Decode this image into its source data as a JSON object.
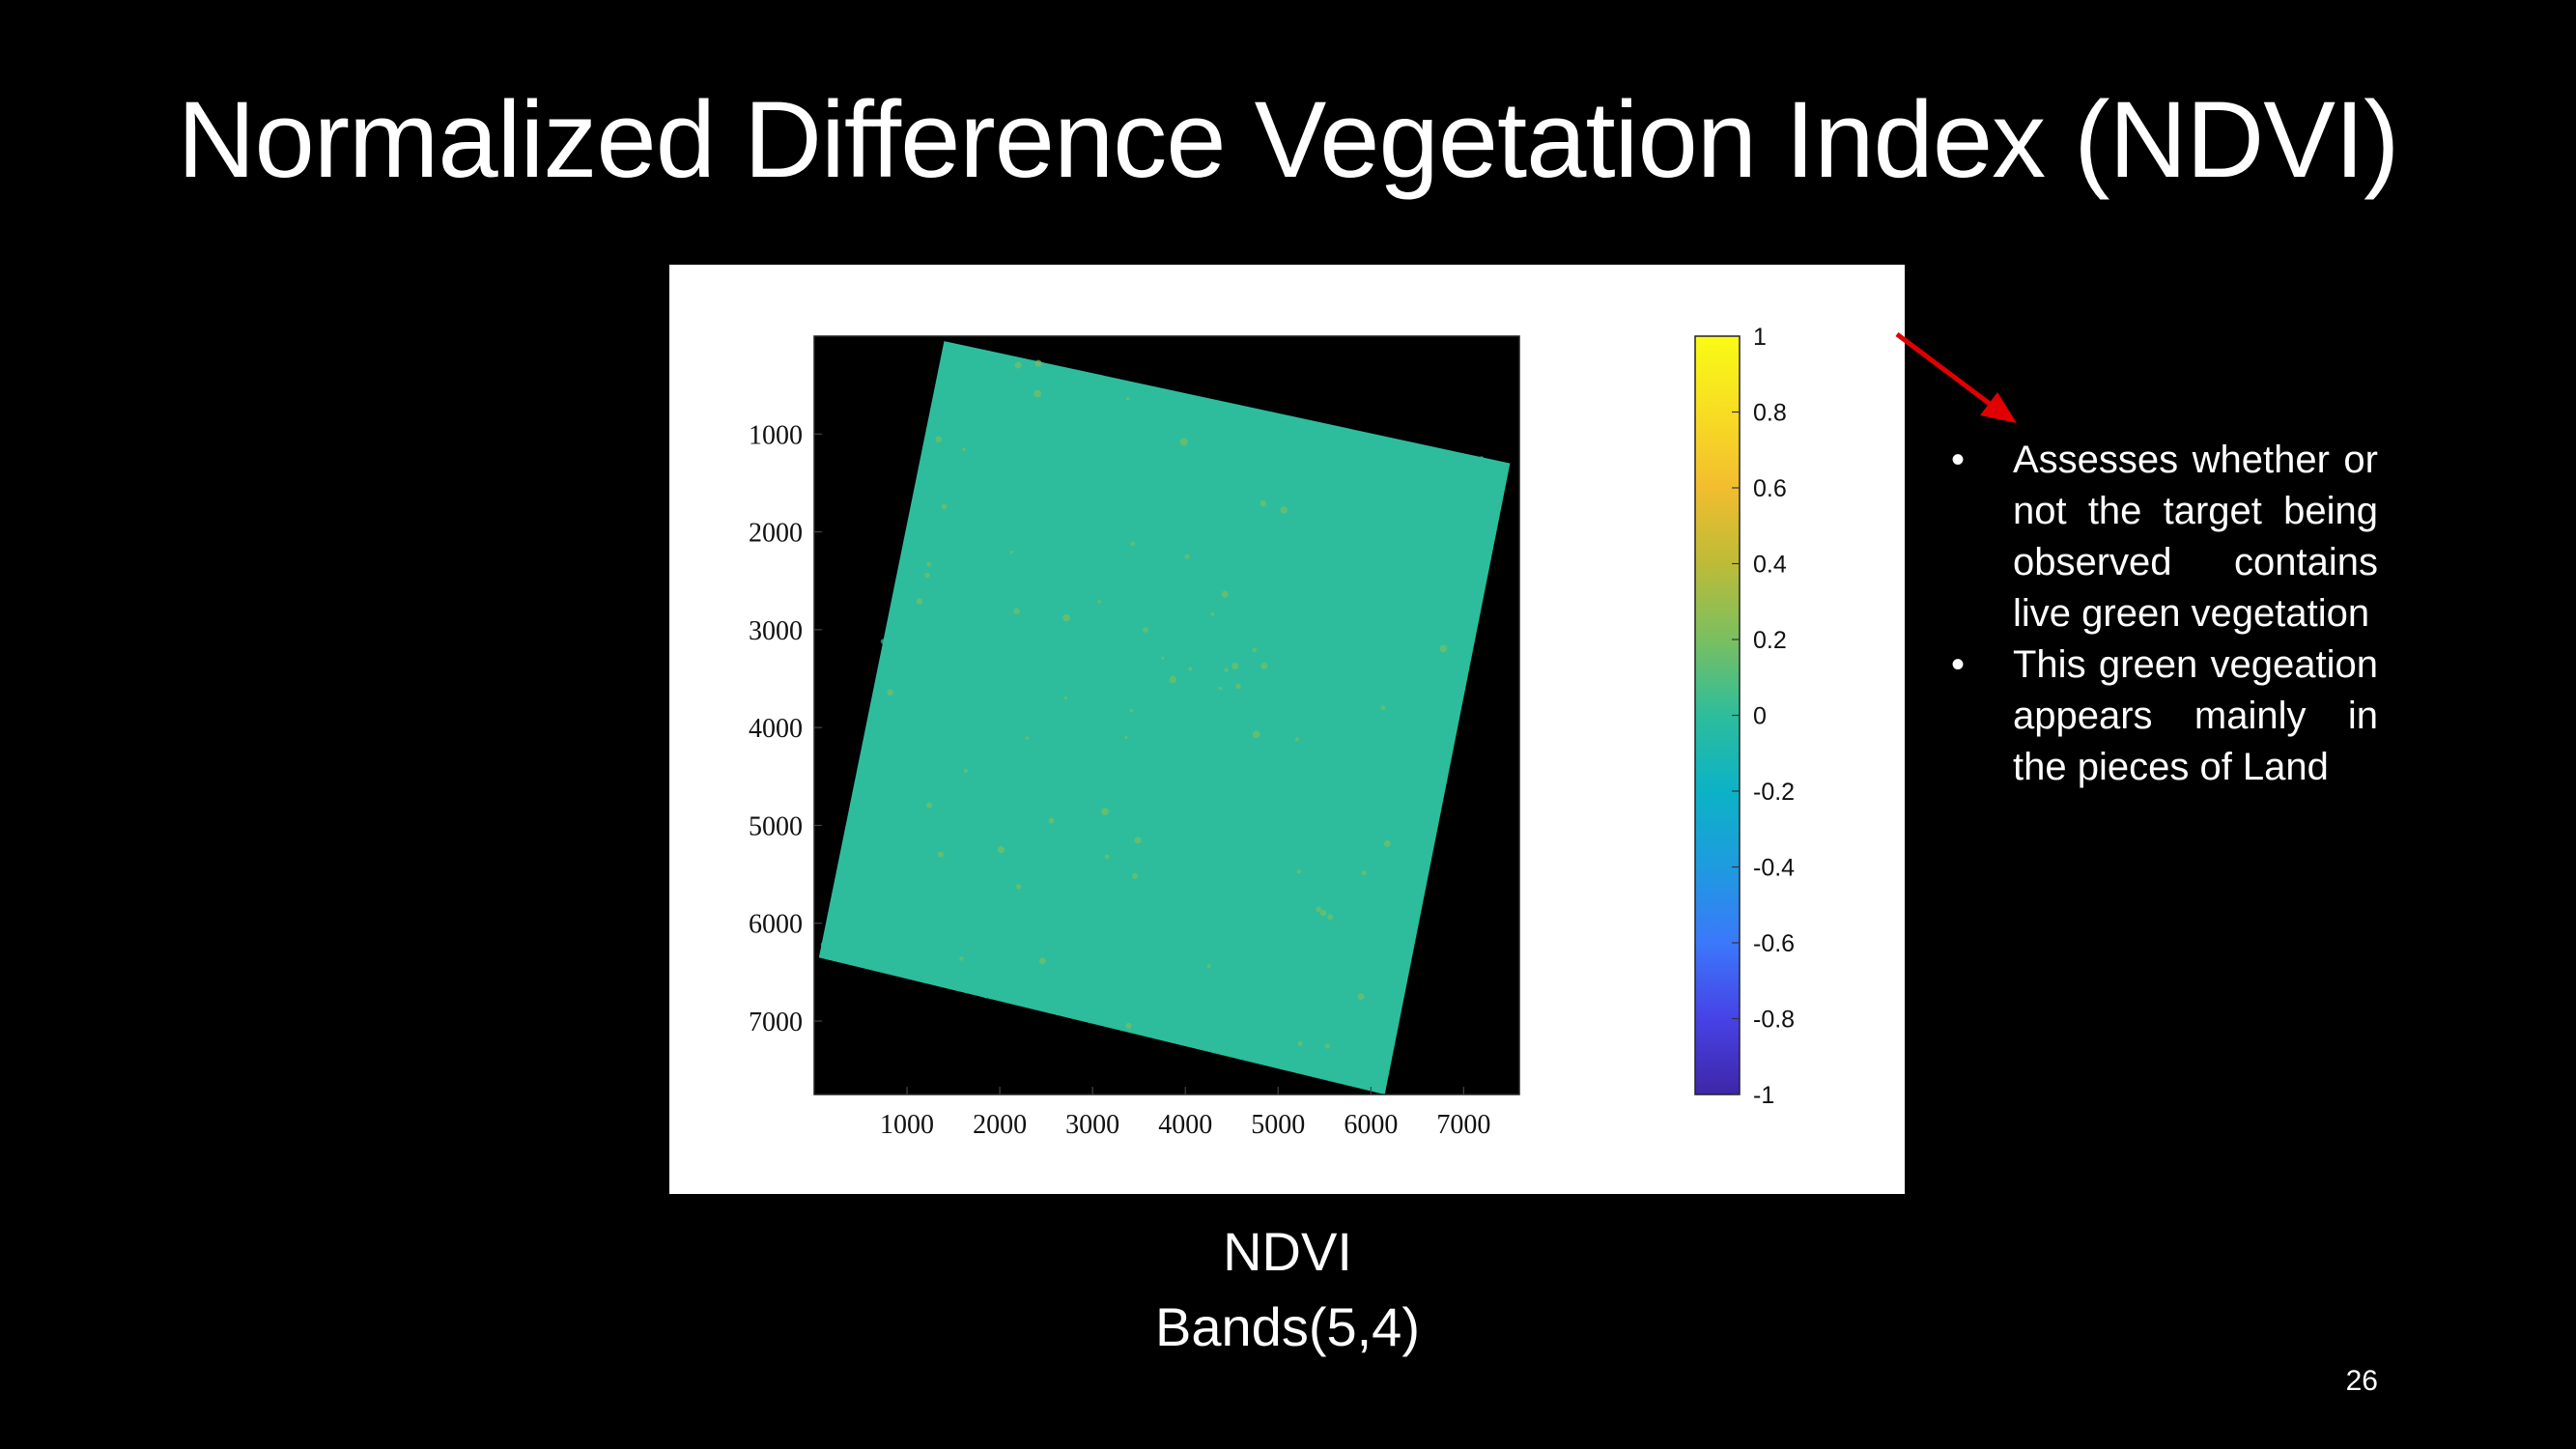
{
  "slide": {
    "title": "Normalized Difference Vegetation Index (NDVI)",
    "caption_line1": "NDVI",
    "caption_line2": "Bands(5,4)",
    "page_number": "26",
    "bullets": [
      {
        "symbol": "•",
        "text": "Assesses whether or not the target being observed contains live green vegetation"
      },
      {
        "symbol": "•",
        "text": "This green vegeation appears mainly in the pieces of Land"
      }
    ],
    "arrow_color": "#e00000"
  },
  "chart_data": {
    "type": "heatmap",
    "title": "",
    "xlabel": "",
    "ylabel": "",
    "xlim": [
      0,
      7600
    ],
    "ylim": [
      7750,
      0
    ],
    "x_ticks": [
      1000,
      2000,
      3000,
      4000,
      5000,
      6000,
      7000
    ],
    "y_ticks": [
      1000,
      2000,
      3000,
      4000,
      5000,
      6000,
      7000
    ],
    "image_footprint_corners": [
      [
        1400,
        50
      ],
      [
        7500,
        1300
      ],
      [
        6150,
        7750
      ],
      [
        50,
        6350
      ]
    ],
    "background_color": "#000000",
    "dominant_value": -0.1,
    "colorbar": {
      "range": [
        -1,
        1
      ],
      "ticks": [
        "1",
        "0.8",
        "0.6",
        "0.4",
        "0.2",
        "0",
        "-0.2",
        "-0.4",
        "-0.6",
        "-0.8",
        "-1"
      ],
      "colormap": [
        "#3e26a8",
        "#4742e6",
        "#3b78fb",
        "#1e9bdf",
        "#0cb2c6",
        "#2dbd9c",
        "#7abf60",
        "#bdbb37",
        "#f2bd2f",
        "#f8dd23",
        "#f9fb15"
      ]
    }
  }
}
